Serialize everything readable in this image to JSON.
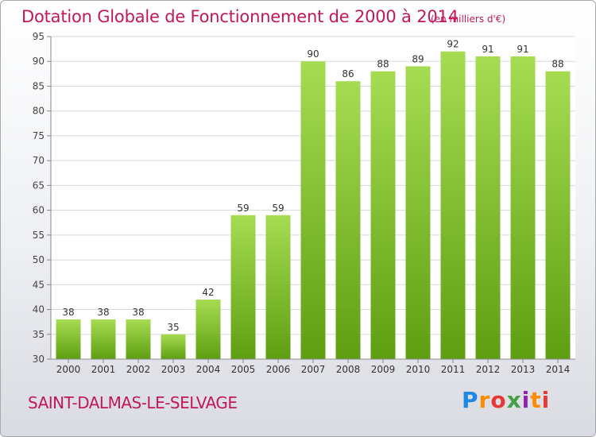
{
  "header": {
    "title": "Dotation Globale de Fonctionnement de 2000 à 2014",
    "unit": "(en milliers d'€)"
  },
  "footer": {
    "commune": "SAINT-DALMAS-LE-SELVAGE",
    "logo": "Proxiti"
  },
  "colors": {
    "accent": "#c2185b",
    "bar_light": "#9fd54a",
    "bar_dark": "#5e9e12"
  },
  "chart_data": {
    "type": "bar",
    "title": "Dotation Globale de Fonctionnement de 2000 à 2014",
    "subtitle": "(en milliers d'€)",
    "xlabel": "",
    "ylabel": "",
    "ylim": [
      30,
      95
    ],
    "yticks": [
      30,
      35,
      40,
      45,
      50,
      55,
      60,
      65,
      70,
      75,
      80,
      85,
      90,
      95
    ],
    "grid": true,
    "categories": [
      "2000",
      "2001",
      "2002",
      "2003",
      "2004",
      "2005",
      "2006",
      "2007",
      "2008",
      "2009",
      "2010",
      "2011",
      "2012",
      "2013",
      "2014"
    ],
    "values": [
      38,
      38,
      38,
      35,
      42,
      59,
      59,
      90,
      86,
      88,
      89,
      92,
      91,
      91,
      88
    ]
  }
}
